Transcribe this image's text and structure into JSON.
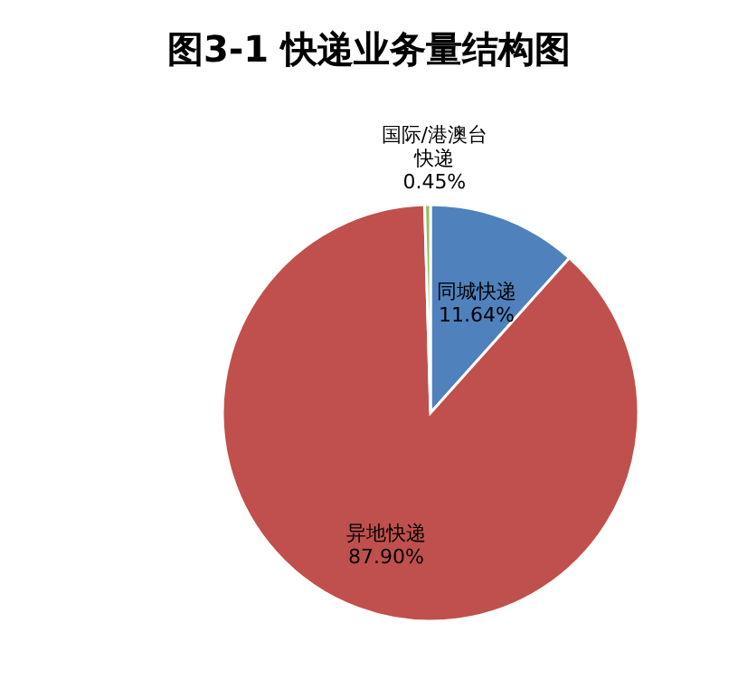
{
  "chart_data": {
    "type": "pie",
    "title": "图3-1  快递业务量结构图",
    "categories": [
      "同城快递",
      "异地快递",
      "国际/港澳台快递"
    ],
    "values": [
      11.64,
      87.9,
      0.45
    ],
    "value_labels": [
      "11.64%",
      "87.90%",
      "0.45%"
    ],
    "colors": [
      "#4f81bd",
      "#c0504d",
      "#9bbb59"
    ]
  }
}
